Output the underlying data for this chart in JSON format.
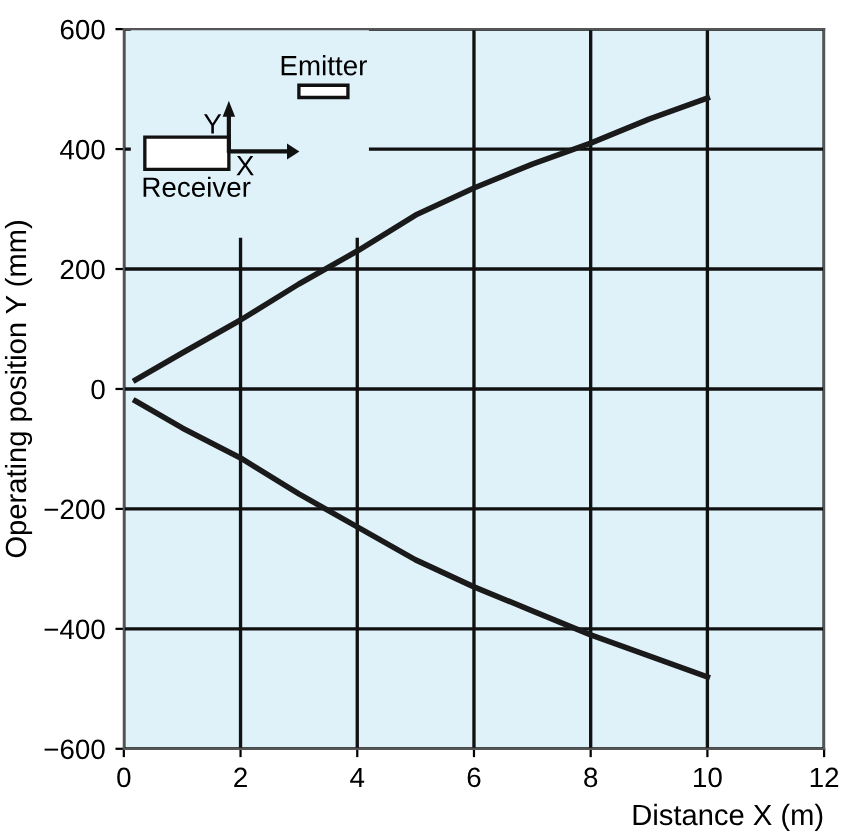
{
  "chart_data": {
    "type": "line",
    "xlabel": "Distance X (m)",
    "ylabel": "Operating position Y (mm)",
    "series": [
      {
        "color": "#1a1a1a",
        "x": [
          0.2,
          1,
          2,
          3,
          4,
          5,
          6,
          7,
          8,
          9,
          10
        ],
        "values": [
          15,
          60,
          115,
          175,
          230,
          290,
          335,
          375,
          410,
          450,
          485
        ]
      },
      {
        "color": "#1a1a1a",
        "x": [
          0.2,
          1,
          2,
          3,
          4,
          5,
          6,
          7,
          8,
          9,
          10
        ],
        "values": [
          -20,
          -65,
          -115,
          -175,
          -230,
          -285,
          -330,
          -370,
          -410,
          -445,
          -480
        ]
      }
    ],
    "xlim": [
      0,
      12
    ],
    "xticks": [
      0,
      2,
      4,
      6,
      8,
      10,
      12
    ],
    "ylim": [
      -600,
      600
    ],
    "yticks": [
      -600,
      -400,
      -200,
      0,
      200,
      400,
      600
    ],
    "grid": true,
    "marker": "none",
    "line_style": "solid",
    "annotations": [
      "Emitter",
      "Receiver",
      "X",
      "Y"
    ]
  }
}
